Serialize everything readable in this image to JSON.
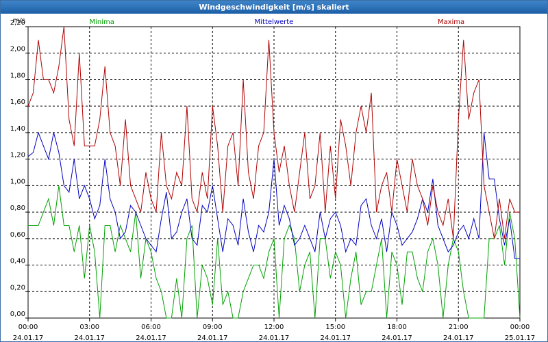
{
  "window": {
    "title": "Windgeschwindigkeit [m/s] skaliert"
  },
  "chart_data": {
    "type": "line",
    "title": "Windgeschwindigkeit [m/s] skaliert",
    "ylabel": "m/s",
    "xlabel": "",
    "ylim": [
      0,
      2.2
    ],
    "xlim": [
      0,
      96
    ],
    "grid": true,
    "y_ticks": [
      "0,00",
      "0,20",
      "0,40",
      "0,60",
      "0,80",
      "1,00",
      "1,20",
      "1,40",
      "1,60",
      "1,80",
      "2,00",
      "2,20"
    ],
    "x_ticks": [
      {
        "time": "00:00",
        "date": "24.01.17"
      },
      {
        "time": "03:00",
        "date": "24.01.17"
      },
      {
        "time": "06:00",
        "date": "24.01.17"
      },
      {
        "time": "09:00",
        "date": "24.01.17"
      },
      {
        "time": "12:00",
        "date": "24.01.17"
      },
      {
        "time": "15:00",
        "date": "24.01.17"
      },
      {
        "time": "18:00",
        "date": "24.01.17"
      },
      {
        "time": "21:00",
        "date": "24.01.17"
      },
      {
        "time": "00:00",
        "date": "25.01.17"
      }
    ],
    "series": [
      {
        "name": "Minima",
        "color": "#00a000",
        "values": [
          0.7,
          0.7,
          0.7,
          0.8,
          0.9,
          0.7,
          1.0,
          0.7,
          0.7,
          0.5,
          0.7,
          0.3,
          0.7,
          0.5,
          0.0,
          0.7,
          0.7,
          0.5,
          0.7,
          0.6,
          0.5,
          0.8,
          0.3,
          0.6,
          0.5,
          0.3,
          0.2,
          0.0,
          0.0,
          0.3,
          0.0,
          0.6,
          0.7,
          0.0,
          0.4,
          0.3,
          0.1,
          0.6,
          0.1,
          0.2,
          0.0,
          0.0,
          0.2,
          0.3,
          0.4,
          0.4,
          0.3,
          0.5,
          0.6,
          0.0,
          0.6,
          0.7,
          0.6,
          0.2,
          0.4,
          0.5,
          0.0,
          0.6,
          0.6,
          0.3,
          0.5,
          0.4,
          0.0,
          0.3,
          0.5,
          0.1,
          0.2,
          0.2,
          0.4,
          0.6,
          0.0,
          0.5,
          0.4,
          0.1,
          0.5,
          0.5,
          0.3,
          0.2,
          0.5,
          0.6,
          0.4,
          0.0,
          0.4,
          0.6,
          0.5,
          0.2,
          0.0,
          0.0,
          0.0,
          0.0,
          0.6,
          0.6,
          0.7,
          0.4,
          0.8,
          0.6,
          0.0
        ]
      },
      {
        "name": "Mittelwerte",
        "color": "#0000c0",
        "values": [
          1.22,
          1.25,
          1.4,
          1.3,
          1.2,
          1.4,
          1.25,
          1.0,
          0.95,
          1.2,
          0.9,
          1.0,
          0.9,
          0.75,
          0.85,
          1.2,
          0.9,
          0.8,
          0.6,
          0.65,
          0.85,
          0.8,
          0.7,
          0.6,
          0.55,
          0.5,
          0.75,
          0.95,
          0.6,
          0.65,
          0.8,
          0.9,
          0.6,
          0.55,
          0.85,
          0.8,
          1.0,
          0.75,
          0.5,
          0.75,
          0.7,
          0.55,
          0.9,
          0.65,
          0.5,
          0.7,
          0.65,
          0.8,
          1.2,
          0.7,
          0.85,
          0.75,
          0.55,
          0.6,
          0.7,
          0.6,
          0.5,
          0.8,
          0.6,
          0.75,
          0.8,
          0.7,
          0.5,
          0.6,
          0.55,
          0.85,
          0.9,
          0.7,
          0.6,
          0.75,
          0.5,
          0.8,
          0.7,
          0.55,
          0.6,
          0.65,
          0.75,
          0.9,
          0.8,
          1.05,
          0.7,
          0.6,
          0.5,
          0.55,
          0.65,
          0.7,
          0.6,
          0.75,
          0.6,
          1.4,
          1.05,
          1.05,
          0.75,
          0.55,
          0.75,
          0.45,
          0.45
        ]
      },
      {
        "name": "Maxima",
        "color": "#b00000",
        "values": [
          1.6,
          1.7,
          2.1,
          1.8,
          1.8,
          1.7,
          1.9,
          2.2,
          1.5,
          1.3,
          2.0,
          1.3,
          1.3,
          1.3,
          1.5,
          1.9,
          1.4,
          1.3,
          1.0,
          1.5,
          1.0,
          0.9,
          0.8,
          1.1,
          0.9,
          0.8,
          1.4,
          1.0,
          0.9,
          1.1,
          1.0,
          1.6,
          0.9,
          0.8,
          1.1,
          0.9,
          1.6,
          1.3,
          0.8,
          1.3,
          1.4,
          1.0,
          1.8,
          1.1,
          0.9,
          1.3,
          1.4,
          2.1,
          1.4,
          1.1,
          1.3,
          1.0,
          0.8,
          1.1,
          1.4,
          0.9,
          1.0,
          1.4,
          0.8,
          1.3,
          0.9,
          1.5,
          1.3,
          1.0,
          1.4,
          1.6,
          1.4,
          1.7,
          0.8,
          1.0,
          1.1,
          0.8,
          1.2,
          1.0,
          0.8,
          1.2,
          1.0,
          0.9,
          0.7,
          1.0,
          0.8,
          0.7,
          0.9,
          0.6,
          1.5,
          2.1,
          1.5,
          1.7,
          1.8,
          1.0,
          0.8,
          0.6,
          0.9,
          0.6,
          0.9,
          0.8,
          0.8
        ]
      }
    ]
  }
}
